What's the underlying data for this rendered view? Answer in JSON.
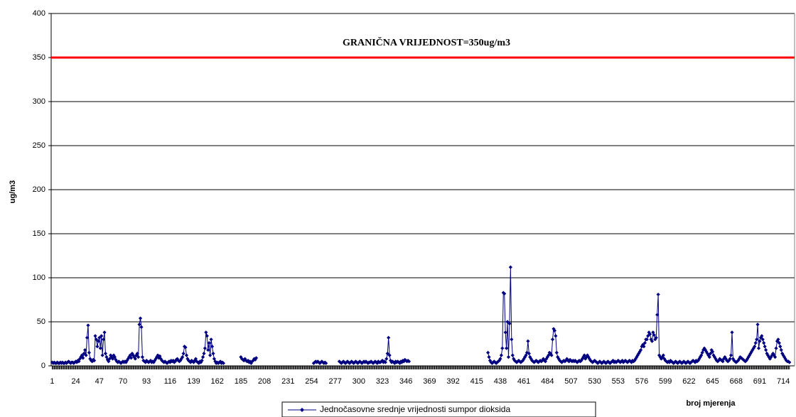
{
  "chart_data": {
    "type": "line",
    "ylabel": "ug/m3",
    "xlabel": "broj mjerenja",
    "annotation": {
      "value": 350,
      "label": "GRANIČNA VRIJEDNOST=350ug/m3",
      "color": "#ff0000"
    },
    "xlim": [
      0,
      725
    ],
    "ylim": [
      0,
      400
    ],
    "yticks": [
      0,
      50,
      100,
      150,
      200,
      250,
      300,
      350,
      400
    ],
    "xticks": [
      1,
      24,
      47,
      70,
      93,
      116,
      139,
      162,
      185,
      208,
      231,
      254,
      277,
      300,
      323,
      346,
      369,
      392,
      415,
      438,
      461,
      484,
      507,
      530,
      553,
      576,
      599,
      622,
      645,
      668,
      691,
      714
    ],
    "grid": true,
    "legend": "bottom",
    "x": [
      1,
      2,
      3,
      4,
      5,
      6,
      7,
      8,
      9,
      10,
      11,
      12,
      13,
      14,
      15,
      16,
      17,
      18,
      19,
      20,
      21,
      22,
      23,
      24,
      25,
      26,
      27,
      28,
      29,
      30,
      31,
      32,
      33,
      34,
      35,
      36,
      37,
      38,
      39,
      40,
      41,
      42,
      43,
      44,
      45,
      46,
      47,
      48,
      49,
      50,
      51,
      52,
      53,
      54,
      55,
      56,
      57,
      58,
      59,
      60,
      61,
      62,
      63,
      64,
      65,
      66,
      67,
      68,
      69,
      70,
      71,
      72,
      73,
      74,
      75,
      76,
      77,
      78,
      79,
      80,
      81,
      82,
      83,
      84,
      85,
      86,
      87,
      88,
      89,
      90,
      91,
      92,
      93,
      94,
      95,
      96,
      97,
      98,
      99,
      100,
      101,
      102,
      103,
      104,
      105,
      106,
      107,
      108,
      109,
      110,
      111,
      112,
      113,
      114,
      115,
      116,
      117,
      118,
      119,
      120,
      121,
      122,
      123,
      124,
      125,
      126,
      127,
      128,
      129,
      130,
      131,
      132,
      133,
      134,
      135,
      136,
      137,
      138,
      139,
      140,
      141,
      142,
      143,
      144,
      145,
      146,
      147,
      148,
      149,
      150,
      151,
      152,
      153,
      154,
      155,
      156,
      157,
      158,
      159,
      160,
      161,
      162,
      163,
      164,
      165,
      166,
      167,
      168,
      169,
      170,
      171,
      172,
      173,
      174,
      175,
      176,
      177,
      178,
      179,
      180,
      181,
      182,
      183,
      184,
      185,
      186,
      187,
      188,
      189,
      190,
      191,
      192,
      193,
      194,
      195,
      196,
      197,
      198,
      199,
      200,
      201,
      202,
      203,
      204,
      205,
      206,
      207,
      208,
      209,
      210,
      211,
      212,
      213,
      214,
      215,
      216,
      217,
      218,
      219,
      220,
      221,
      222,
      223,
      224,
      225,
      226,
      227,
      228,
      229,
      230,
      231,
      232,
      233,
      234,
      235,
      236,
      237,
      238,
      239,
      240,
      241,
      242,
      243,
      244,
      245,
      246,
      247,
      248,
      249,
      250,
      251,
      252,
      253,
      254,
      255,
      256,
      257,
      258,
      259,
      260,
      261,
      262,
      263,
      264,
      265,
      266,
      267,
      268,
      269,
      270,
      271,
      272,
      273,
      274,
      275,
      276,
      277,
      278,
      279,
      280,
      281,
      282,
      283,
      284,
      285,
      286,
      287,
      288,
      289,
      290,
      291,
      292,
      293,
      294,
      295,
      296,
      297,
      298,
      299,
      300,
      301,
      302,
      303,
      304,
      305,
      306,
      307,
      308,
      309,
      310,
      311,
      312,
      313,
      314,
      315,
      316,
      317,
      318,
      319,
      320,
      321,
      322,
      323,
      324,
      325,
      326,
      327,
      328,
      329,
      330,
      331,
      332,
      333,
      334,
      335,
      336,
      337,
      338,
      339,
      340,
      341,
      342,
      343,
      344,
      345,
      346,
      347,
      348,
      349,
      350,
      351,
      352,
      353,
      354,
      355,
      356,
      357,
      358,
      359,
      360,
      361,
      362,
      363,
      364,
      365,
      366,
      367,
      368,
      369,
      370,
      371,
      372,
      373,
      374,
      375,
      376,
      377,
      378,
      379,
      380,
      381,
      382,
      383,
      384,
      385,
      386,
      387,
      388,
      389,
      390,
      391,
      392,
      393,
      394,
      395,
      396,
      397,
      398,
      399,
      400,
      401,
      402,
      403,
      404,
      405,
      406,
      407,
      408,
      409,
      410,
      411,
      412,
      413,
      414,
      415,
      416,
      417,
      418,
      419,
      420,
      421,
      422,
      423,
      424,
      425,
      426,
      427,
      428,
      429,
      430,
      431,
      432,
      433,
      434,
      435,
      436,
      437,
      438,
      439,
      440,
      441,
      442,
      443,
      444,
      445,
      446,
      447,
      448,
      449,
      450,
      451,
      452,
      453,
      454,
      455,
      456,
      457,
      458,
      459,
      460,
      461,
      462,
      463,
      464,
      465,
      466,
      467,
      468,
      469,
      470,
      471,
      472,
      473,
      474,
      475,
      476,
      477,
      478,
      479,
      480,
      481,
      482,
      483,
      484,
      485,
      486,
      487,
      488,
      489,
      490,
      491,
      492,
      493,
      494,
      495,
      496,
      497,
      498,
      499,
      500,
      501,
      502,
      503,
      504,
      505,
      506,
      507,
      508,
      509,
      510,
      511,
      512,
      513,
      514,
      515,
      516,
      517,
      518,
      519,
      520,
      521,
      522,
      523,
      524,
      525,
      526,
      527,
      528,
      529,
      530,
      531,
      532,
      533,
      534,
      535,
      536,
      537,
      538,
      539,
      540,
      541,
      542,
      543,
      544,
      545,
      546,
      547,
      548,
      549,
      550,
      551,
      552,
      553,
      554,
      555,
      556,
      557,
      558,
      559,
      560,
      561,
      562,
      563,
      564,
      565,
      566,
      567,
      568,
      569,
      570,
      571,
      572,
      573,
      574,
      575,
      576,
      577,
      578,
      579,
      580,
      581,
      582,
      583,
      584,
      585,
      586,
      587,
      588,
      589,
      590,
      591,
      592,
      593,
      594,
      595,
      596,
      597,
      598,
      599,
      600,
      601,
      602,
      603,
      604,
      605,
      606,
      607,
      608,
      609,
      610,
      611,
      612,
      613,
      614,
      615,
      616,
      617,
      618,
      619,
      620,
      621,
      622,
      623,
      624,
      625,
      626,
      627,
      628,
      629,
      630,
      631,
      632,
      633,
      634,
      635,
      636,
      637,
      638,
      639,
      640,
      641,
      642,
      643,
      644,
      645,
      646,
      647,
      648,
      649,
      650,
      651,
      652,
      653,
      654,
      655,
      656,
      657,
      658,
      659,
      660,
      661,
      662,
      663,
      664,
      665,
      666,
      667,
      668,
      669,
      670,
      671,
      672,
      673,
      674,
      675,
      676,
      677,
      678,
      679,
      680,
      681,
      682,
      683,
      684,
      685,
      686,
      687,
      688,
      689,
      690,
      691,
      692,
      693,
      694,
      695,
      696,
      697,
      698,
      699,
      700,
      701,
      702,
      703,
      704,
      705,
      706,
      707,
      708,
      709,
      710,
      711,
      712,
      713,
      714,
      715,
      716,
      717,
      718,
      719,
      720
    ],
    "series": [
      {
        "name": "Jednočasovne srednje vrijednosti sumpor dioksida",
        "color": "#000080",
        "values": [
          4,
          3,
          4,
          3,
          3,
          4,
          3,
          3,
          4,
          3,
          4,
          3,
          3,
          4,
          3,
          4,
          5,
          4,
          3,
          4,
          4,
          3,
          4,
          5,
          4,
          6,
          5,
          8,
          10,
          12,
          9,
          14,
          18,
          12,
          32,
          46,
          15,
          8,
          6,
          5,
          7,
          6,
          34,
          30,
          22,
          28,
          32,
          20,
          34,
          12,
          30,
          38,
          14,
          10,
          7,
          5,
          8,
          12,
          10,
          8,
          12,
          10,
          7,
          5,
          4,
          5,
          4,
          3,
          4,
          5,
          4,
          5,
          4,
          6,
          8,
          10,
          12,
          9,
          14,
          12,
          10,
          8,
          12,
          14,
          10,
          47,
          54,
          44,
          10,
          6,
          5,
          4,
          6,
          5,
          4,
          5,
          6,
          4,
          5,
          4,
          6,
          8,
          10,
          12,
          9,
          11,
          8,
          6,
          5,
          4,
          5,
          4,
          3,
          4,
          5,
          4,
          6,
          5,
          6,
          4,
          5,
          7,
          8,
          6,
          5,
          6,
          8,
          10,
          14,
          22,
          21,
          12,
          8,
          6,
          5,
          4,
          6,
          5,
          4,
          6,
          8,
          5,
          4,
          3,
          5,
          4,
          6,
          10,
          14,
          20,
          38,
          34,
          18,
          26,
          12,
          30,
          22,
          14,
          8,
          5,
          3,
          4,
          3,
          4,
          5,
          3,
          4,
          3,
          null,
          null,
          null,
          null,
          null,
          null,
          null,
          null,
          null,
          null,
          null,
          null,
          null,
          null,
          null,
          null,
          10,
          8,
          7,
          6,
          8,
          6,
          5,
          6,
          4,
          5,
          3,
          5,
          6,
          8,
          7,
          9,
          null,
          null,
          null,
          null,
          null,
          null,
          null,
          null,
          null,
          null,
          null,
          null,
          null,
          null,
          null,
          null,
          null,
          null,
          null,
          null,
          null,
          null,
          null,
          null,
          null,
          null,
          null,
          null,
          null,
          null,
          null,
          null,
          null,
          null,
          null,
          null,
          null,
          null,
          null,
          null,
          null,
          null,
          null,
          null,
          null,
          null,
          null,
          null,
          null,
          null,
          null,
          null,
          null,
          null,
          null,
          3,
          4,
          5,
          4,
          5,
          4,
          3,
          4,
          5,
          4,
          3,
          4,
          3,
          null,
          null,
          null,
          null,
          null,
          null,
          null,
          null,
          null,
          null,
          null,
          null,
          5,
          4,
          3,
          4,
          5,
          4,
          3,
          4,
          5,
          4,
          3,
          4,
          5,
          4,
          3,
          4,
          5,
          4,
          3,
          4,
          5,
          4,
          3,
          4,
          5,
          4,
          5,
          4,
          3,
          4,
          4,
          5,
          4,
          3,
          4,
          5,
          4,
          3,
          5,
          4,
          4,
          5,
          6,
          4,
          5,
          4,
          8,
          14,
          32,
          12,
          6,
          4,
          5,
          4,
          3,
          5,
          4,
          5,
          4,
          3,
          5,
          4,
          6,
          5,
          7,
          6,
          5,
          6,
          5,
          null,
          null,
          null,
          null,
          null,
          null,
          null,
          null,
          null,
          null,
          null,
          null,
          null,
          null,
          null,
          null,
          null,
          null,
          null,
          null,
          null,
          null,
          null,
          null,
          null,
          null,
          null,
          null,
          null,
          null,
          null,
          null,
          null,
          null,
          null,
          null,
          null,
          null,
          null,
          null,
          null,
          null,
          null,
          null,
          null,
          null,
          null,
          null,
          null,
          null,
          null,
          null,
          null,
          null,
          null,
          null,
          null,
          null,
          null,
          null,
          null,
          null,
          null,
          null,
          null,
          null,
          null,
          null,
          null,
          null,
          null,
          null,
          null,
          null,
          null,
          null,
          15,
          10,
          6,
          4,
          3,
          4,
          5,
          4,
          3,
          4,
          5,
          6,
          8,
          12,
          20,
          83,
          82,
          38,
          20,
          50,
          10,
          48,
          112,
          30,
          12,
          8,
          6,
          5,
          4,
          5,
          6,
          5,
          4,
          5,
          6,
          8,
          10,
          12,
          15,
          28,
          14,
          10,
          8,
          6,
          5,
          4,
          5,
          6,
          5,
          4,
          5,
          6,
          5,
          6,
          8,
          6,
          5,
          8,
          10,
          12,
          15,
          14,
          12,
          30,
          42,
          40,
          34,
          15,
          10,
          8,
          6,
          5,
          4,
          5,
          6,
          5,
          6,
          8,
          6,
          5,
          7,
          6,
          5,
          6,
          5,
          6,
          5,
          4,
          5,
          6,
          5,
          6,
          8,
          10,
          12,
          8,
          10,
          12,
          10,
          8,
          6,
          5,
          4,
          5,
          6,
          5,
          4,
          3,
          4,
          5,
          4,
          3,
          4,
          5,
          4,
          3,
          4,
          5,
          4,
          3,
          4,
          5,
          6,
          4,
          5,
          4,
          5,
          6,
          5,
          4,
          5,
          6,
          4,
          5,
          6,
          5,
          4,
          5,
          6,
          5,
          4,
          6,
          5,
          6,
          8,
          10,
          12,
          14,
          16,
          18,
          22,
          24,
          22,
          26,
          30,
          30,
          34,
          38,
          36,
          30,
          28,
          38,
          35,
          30,
          32,
          58,
          81,
          12,
          10,
          8,
          10,
          12,
          8,
          6,
          5,
          4,
          5,
          4,
          6,
          5,
          4,
          3,
          4,
          5,
          4,
          3,
          4,
          5,
          4,
          3,
          4,
          5,
          4,
          3,
          4,
          5,
          4,
          3,
          4,
          5,
          6,
          5,
          4,
          6,
          5,
          6,
          8,
          10,
          12,
          15,
          18,
          20,
          18,
          16,
          14,
          12,
          10,
          14,
          18,
          16,
          12,
          10,
          8,
          6,
          5,
          6,
          8,
          7,
          6,
          5,
          8,
          10,
          8,
          6,
          5,
          6,
          8,
          12,
          38,
          8,
          6,
          5,
          4,
          5,
          6,
          8,
          10,
          9,
          8,
          7,
          6,
          5,
          6,
          8,
          10,
          12,
          14,
          16,
          18,
          20,
          22,
          26,
          30,
          47,
          20,
          28,
          32,
          34,
          30,
          26,
          22,
          18,
          14,
          12,
          10,
          8,
          10,
          12,
          14,
          12,
          10,
          20,
          28,
          30,
          26,
          22,
          18,
          14,
          12,
          10,
          8,
          6,
          5,
          5,
          4
        ]
      }
    ]
  }
}
